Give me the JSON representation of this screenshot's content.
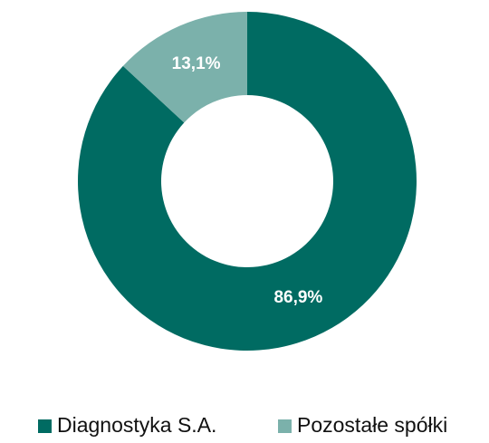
{
  "chart_data": {
    "type": "donut",
    "categories": [
      "Diagnostyka S.A.",
      "Pozostałe spółki"
    ],
    "values": [
      86.9,
      13.1
    ],
    "value_labels": [
      "86,9%",
      "13,1%"
    ],
    "colors": [
      "#006b62",
      "#7bb1ab"
    ],
    "legend": "bottom"
  }
}
